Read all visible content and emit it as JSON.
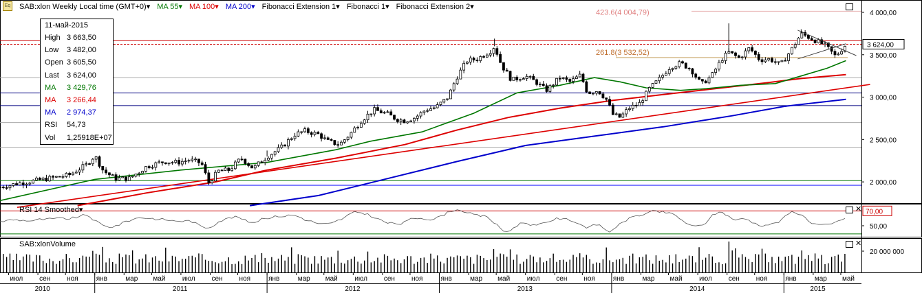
{
  "header": {
    "symbol": "SAB:xlon Weekly Local time (GMT+0)",
    "indicators": [
      {
        "label": "MA 55",
        "color": "#007700"
      },
      {
        "label": "MA 100",
        "color": "#dd0000"
      },
      {
        "label": "MA 200",
        "color": "#0000cc"
      },
      {
        "label": "Fibonacci Extension 1",
        "color": "#000000"
      },
      {
        "label": "Fibonacci 1",
        "color": "#000000"
      },
      {
        "label": "Fibonacci Extension 2",
        "color": "#000000"
      }
    ]
  },
  "ohlc_box": {
    "date": "11-май-2015",
    "rows": [
      {
        "k": "High",
        "v": "3 663,50",
        "color": "#000000"
      },
      {
        "k": "Low",
        "v": "3 482,00",
        "color": "#000000"
      },
      {
        "k": "Open",
        "v": "3 605,50",
        "color": "#000000"
      },
      {
        "k": "Last",
        "v": "3 624,00",
        "color": "#000000"
      },
      {
        "k": "MA",
        "v": "3 429,76",
        "color": "#007700"
      },
      {
        "k": "MA",
        "v": "3 266,44",
        "color": "#dd0000"
      },
      {
        "k": "MA",
        "v": "2 974,37",
        "color": "#0000cc"
      },
      {
        "k": "RSI",
        "v": "54,73",
        "color": "#000000"
      },
      {
        "k": "Vol",
        "v": "1,25918E+07",
        "color": "#000000"
      }
    ]
  },
  "rsi_panel": {
    "title": "RSI 14 Smoothed",
    "level_label": "70,00",
    "tick_label": "50,00"
  },
  "volume_panel": {
    "title": "SAB:xlonVolume",
    "tick_label": "20 000 000"
  },
  "chart_data": {
    "type": "candlestick",
    "price_axis": {
      "ylim": [
        1750,
        4000
      ],
      "ticks": [
        "2 000,00",
        "2 500,00",
        "3 000,00",
        "3 500,00",
        "4 000,00"
      ],
      "tick_values": [
        2000,
        2500,
        3000,
        3500,
        4000
      ]
    },
    "last_price": {
      "value": 3624,
      "label": "3 624,00"
    },
    "fib_labels": [
      {
        "text": "423.6(4 004,79)",
        "value": 4005
      },
      {
        "text": "261.8(3 532,52)",
        "value": 3532
      }
    ],
    "horizontal_levels": [
      {
        "value": 3665,
        "color": "#cc0000"
      },
      {
        "value": 3624,
        "color": "#cc0000",
        "dashed": true
      },
      {
        "value": 3230,
        "color": "#aaaaaa"
      },
      {
        "value": 3050,
        "color": "#000080"
      },
      {
        "value": 2900,
        "color": "#000080"
      },
      {
        "value": 2700,
        "color": "#aaaaaa"
      },
      {
        "value": 2410,
        "color": "#aaaaaa"
      },
      {
        "value": 2015,
        "color": "#007700"
      },
      {
        "value": 1960,
        "color": "#0000ff"
      }
    ],
    "price_path": [
      [
        2010.45,
        1940
      ],
      [
        2010.55,
        1980
      ],
      [
        2010.7,
        2030
      ],
      [
        2010.85,
        2080
      ],
      [
        2010.95,
        2200
      ],
      [
        2011.0,
        2310
      ],
      [
        2011.05,
        2130
      ],
      [
        2011.12,
        2040
      ],
      [
        2011.2,
        2040
      ],
      [
        2011.3,
        2180
      ],
      [
        2011.4,
        2240
      ],
      [
        2011.48,
        2230
      ],
      [
        2011.55,
        2260
      ],
      [
        2011.62,
        2220
      ],
      [
        2011.66,
        1990
      ],
      [
        2011.72,
        2130
      ],
      [
        2011.78,
        2140
      ],
      [
        2011.85,
        2280
      ],
      [
        2011.92,
        2160
      ],
      [
        2012.0,
        2300
      ],
      [
        2012.08,
        2400
      ],
      [
        2012.16,
        2560
      ],
      [
        2012.22,
        2600
      ],
      [
        2012.3,
        2560
      ],
      [
        2012.35,
        2480
      ],
      [
        2012.42,
        2440
      ],
      [
        2012.48,
        2560
      ],
      [
        2012.55,
        2730
      ],
      [
        2012.62,
        2850
      ],
      [
        2012.7,
        2800
      ],
      [
        2012.75,
        2740
      ],
      [
        2012.8,
        2720
      ],
      [
        2012.86,
        2760
      ],
      [
        2012.92,
        2850
      ],
      [
        2012.98,
        2880
      ],
      [
        2013.05,
        3000
      ],
      [
        2013.1,
        3230
      ],
      [
        2013.16,
        3430
      ],
      [
        2013.22,
        3450
      ],
      [
        2013.3,
        3550
      ],
      [
        2013.32,
        3600
      ],
      [
        2013.36,
        3380
      ],
      [
        2013.42,
        3200
      ],
      [
        2013.5,
        3250
      ],
      [
        2013.56,
        3180
      ],
      [
        2013.62,
        3080
      ],
      [
        2013.7,
        3230
      ],
      [
        2013.76,
        3180
      ],
      [
        2013.82,
        3260
      ],
      [
        2013.86,
        3050
      ],
      [
        2013.92,
        3080
      ],
      [
        2013.98,
        2950
      ],
      [
        2014.0,
        2800
      ],
      [
        2014.05,
        2760
      ],
      [
        2014.1,
        2870
      ],
      [
        2014.16,
        2920
      ],
      [
        2014.22,
        3100
      ],
      [
        2014.28,
        3220
      ],
      [
        2014.34,
        3360
      ],
      [
        2014.4,
        3400
      ],
      [
        2014.46,
        3330
      ],
      [
        2014.52,
        3150
      ],
      [
        2014.58,
        3250
      ],
      [
        2014.64,
        3450
      ],
      [
        2014.68,
        3530
      ],
      [
        2014.74,
        3460
      ],
      [
        2014.8,
        3580
      ],
      [
        2014.86,
        3440
      ],
      [
        2014.92,
        3450
      ],
      [
        2014.98,
        3380
      ],
      [
        2015.04,
        3550
      ],
      [
        2015.1,
        3750
      ],
      [
        2015.16,
        3690
      ],
      [
        2015.24,
        3610
      ],
      [
        2015.3,
        3480
      ],
      [
        2015.36,
        3624
      ]
    ],
    "spikes": [
      [
        2014.68,
        3870
      ],
      [
        2015.1,
        3800
      ],
      [
        2013.32,
        3690
      ],
      [
        2012.0,
        2370
      ]
    ],
    "ma_55": [
      [
        2010.45,
        1780
      ],
      [
        2011.0,
        2030
      ],
      [
        2011.5,
        2140
      ],
      [
        2012.0,
        2230
      ],
      [
        2012.4,
        2380
      ],
      [
        2012.6,
        2480
      ],
      [
        2012.9,
        2590
      ],
      [
        2013.2,
        2810
      ],
      [
        2013.45,
        3050
      ],
      [
        2013.7,
        3140
      ],
      [
        2013.9,
        3230
      ],
      [
        2014.05,
        3180
      ],
      [
        2014.2,
        3110
      ],
      [
        2014.4,
        3080
      ],
      [
        2014.55,
        3100
      ],
      [
        2014.75,
        3140
      ],
      [
        2014.95,
        3160
      ],
      [
        2015.1,
        3250
      ],
      [
        2015.25,
        3340
      ],
      [
        2015.36,
        3430
      ]
    ],
    "ma_100": [
      [
        2010.9,
        1720
      ],
      [
        2011.3,
        1870
      ],
      [
        2011.7,
        2000
      ],
      [
        2012.0,
        2140
      ],
      [
        2012.4,
        2280
      ],
      [
        2012.8,
        2440
      ],
      [
        2013.1,
        2610
      ],
      [
        2013.4,
        2760
      ],
      [
        2013.7,
        2870
      ],
      [
        2014.0,
        2960
      ],
      [
        2014.3,
        3030
      ],
      [
        2014.6,
        3100
      ],
      [
        2014.9,
        3170
      ],
      [
        2015.1,
        3220
      ],
      [
        2015.36,
        3266
      ]
    ],
    "ma_200": [
      [
        2011.9,
        1720
      ],
      [
        2012.3,
        1840
      ],
      [
        2012.7,
        2040
      ],
      [
        2013.1,
        2240
      ],
      [
        2013.5,
        2430
      ],
      [
        2013.9,
        2540
      ],
      [
        2014.3,
        2650
      ],
      [
        2014.7,
        2780
      ],
      [
        2015.0,
        2890
      ],
      [
        2015.36,
        2974
      ]
    ],
    "red_trendline": [
      [
        2010.55,
        1700
      ],
      [
        2015.5,
        3150
      ]
    ],
    "rsi": {
      "ylim": [
        25,
        80
      ],
      "level": 70,
      "last": 54.73
    },
    "x_axis": {
      "range": [
        2010.45,
        2015.45
      ],
      "months": [
        {
          "t": 2010.5,
          "label": "июл"
        },
        {
          "t": 2010.67,
          "label": "сен"
        },
        {
          "t": 2010.83,
          "label": "ноя"
        },
        {
          "t": 2011.0,
          "label": "янв"
        },
        {
          "t": 2011.17,
          "label": "мар"
        },
        {
          "t": 2011.33,
          "label": "май"
        },
        {
          "t": 2011.5,
          "label": "июл"
        },
        {
          "t": 2011.67,
          "label": "сен"
        },
        {
          "t": 2011.83,
          "label": "ноя"
        },
        {
          "t": 2012.0,
          "label": "янв"
        },
        {
          "t": 2012.17,
          "label": "мар"
        },
        {
          "t": 2012.33,
          "label": "май"
        },
        {
          "t": 2012.5,
          "label": "июл"
        },
        {
          "t": 2012.67,
          "label": "сен"
        },
        {
          "t": 2012.83,
          "label": "ноя"
        },
        {
          "t": 2013.0,
          "label": "янв"
        },
        {
          "t": 2013.17,
          "label": "мар"
        },
        {
          "t": 2013.33,
          "label": "май"
        },
        {
          "t": 2013.5,
          "label": "июл"
        },
        {
          "t": 2013.67,
          "label": "сен"
        },
        {
          "t": 2013.83,
          "label": "ноя"
        },
        {
          "t": 2014.0,
          "label": "янв"
        },
        {
          "t": 2014.17,
          "label": "мар"
        },
        {
          "t": 2014.33,
          "label": "май"
        },
        {
          "t": 2014.5,
          "label": "июл"
        },
        {
          "t": 2014.67,
          "label": "сен"
        },
        {
          "t": 2014.83,
          "label": "ноя"
        },
        {
          "t": 2015.0,
          "label": "янв"
        },
        {
          "t": 2015.17,
          "label": "мар"
        },
        {
          "t": 2015.33,
          "label": "май"
        }
      ],
      "years": [
        {
          "t": 2010.7,
          "label": "2010"
        },
        {
          "t": 2011.5,
          "label": "2011"
        },
        {
          "t": 2012.5,
          "label": "2012"
        },
        {
          "t": 2013.5,
          "label": "2013"
        },
        {
          "t": 2014.5,
          "label": "2014"
        },
        {
          "t": 2015.2,
          "label": "2015"
        }
      ],
      "year_breaks": [
        2011.0,
        2012.0,
        2013.0,
        2014.0,
        2015.0
      ]
    }
  }
}
